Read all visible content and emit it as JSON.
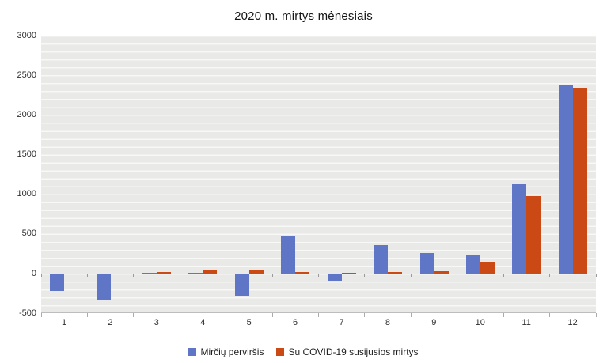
{
  "title": "2020 m. mirtys mėnesiais",
  "chart_data": {
    "type": "bar",
    "title": "2020 m. mirtys mėnesiais",
    "categories": [
      "1",
      "2",
      "3",
      "4",
      "5",
      "6",
      "7",
      "8",
      "9",
      "10",
      "11",
      "12"
    ],
    "series": [
      {
        "name": "Mirčių perviršis",
        "color": "#5f75c6",
        "values": [
          -210,
          -320,
          10,
          15,
          -275,
          465,
          -80,
          360,
          255,
          230,
          1130,
          2380
        ]
      },
      {
        "name": "Su COVID-19 susijusios mirtys",
        "color": "#cb4914",
        "values": [
          0,
          0,
          20,
          50,
          45,
          20,
          10,
          20,
          35,
          150,
          975,
          2340
        ]
      }
    ],
    "xlabel": "",
    "ylabel": "",
    "ylim": [
      -500,
      3000
    ],
    "yticks": [
      3000,
      2500,
      2000,
      1500,
      1000,
      500,
      0,
      -500
    ],
    "minor_grid_interval": 100,
    "grid": "horizontal",
    "legend_position": "bottom"
  }
}
